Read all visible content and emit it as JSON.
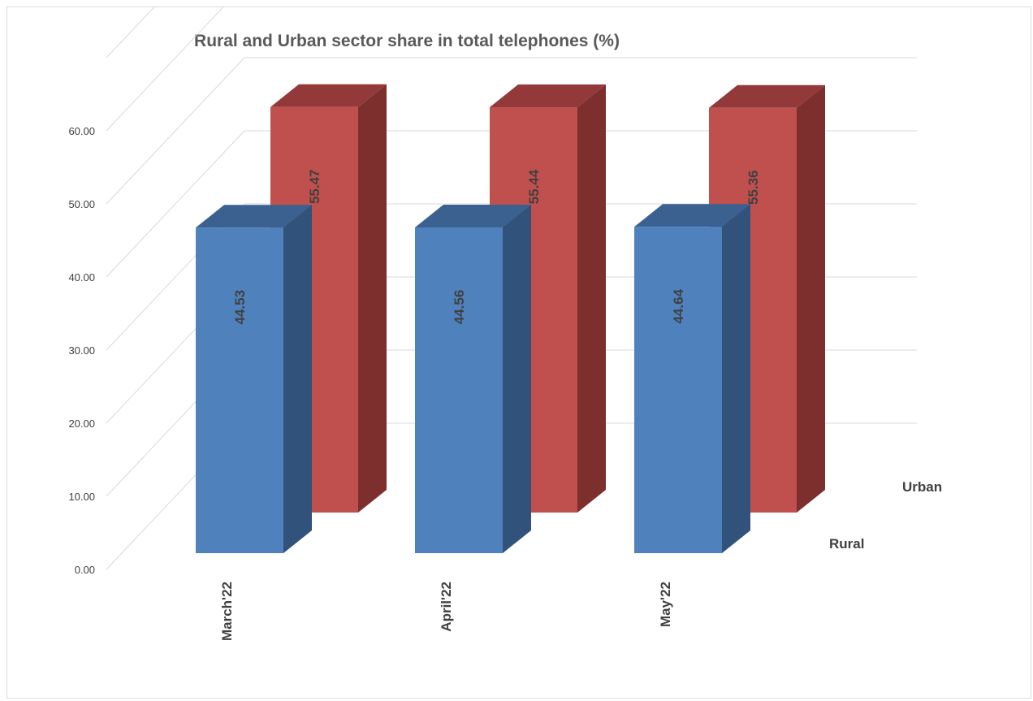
{
  "chart_data": {
    "type": "bar",
    "title": "Rural and Urban sector share in total telephones (%)",
    "categories": [
      "March'22",
      "April'22",
      "May'22"
    ],
    "series": [
      {
        "name": "Rural",
        "values": [
          44.53,
          44.56,
          44.64
        ]
      },
      {
        "name": "Urban",
        "values": [
          55.47,
          55.44,
          55.36
        ]
      }
    ],
    "ylim": [
      0,
      60
    ],
    "yticks": [
      "0.00",
      "10.00",
      "20.00",
      "30.00",
      "40.00",
      "50.00",
      "60.00"
    ],
    "grid": true,
    "style": "3d-clustered-column",
    "colors": {
      "rural_front": "#4f81bd",
      "rural_side": "#31527a",
      "rural_top": "#3b6190",
      "urban_front": "#c0504d",
      "urban_side": "#7d2f2e",
      "urban_top": "#93393a"
    }
  }
}
